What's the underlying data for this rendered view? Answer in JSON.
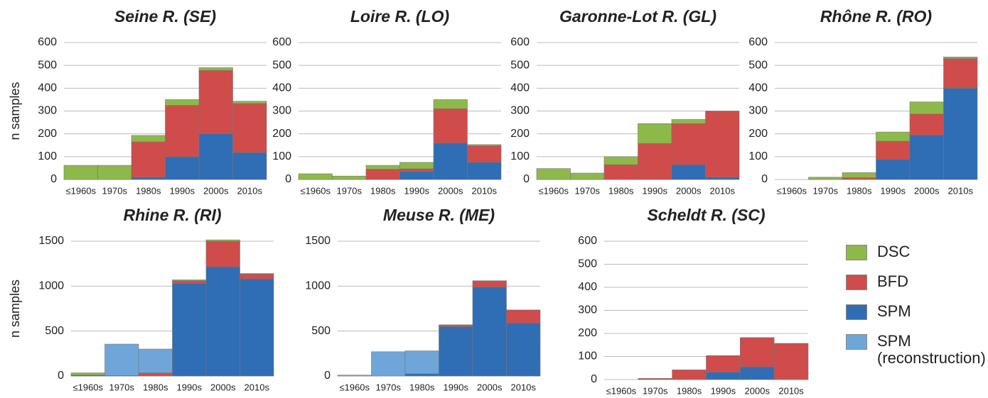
{
  "chart_data": [
    {
      "type": "bar",
      "stacked": true,
      "title": "Seine R. (SE)",
      "ylabel": "n samples",
      "grid": true,
      "categories": [
        "≤1960s",
        "1970s",
        "1980s",
        "1990s",
        "2000s",
        "2010s"
      ],
      "ylim": [
        0,
        600
      ],
      "yticks": [
        0,
        100,
        200,
        300,
        400,
        500,
        600
      ],
      "series": [
        {
          "name": "DSC",
          "color": "#8db94a",
          "values": [
            62,
            62,
            28,
            25,
            12,
            10
          ]
        },
        {
          "name": "BFD",
          "color": "#cf4c4a",
          "values": [
            0,
            0,
            155,
            225,
            278,
            215
          ]
        },
        {
          "name": "SPM",
          "color": "#2f6db5",
          "values": [
            0,
            0,
            10,
            100,
            200,
            118
          ]
        }
      ]
    },
    {
      "type": "bar",
      "stacked": true,
      "title": "Loire R. (LO)",
      "grid": true,
      "categories": [
        "≤1960s",
        "1970s",
        "1980s",
        "1990s",
        "2000s",
        "2010s"
      ],
      "ylim": [
        0,
        600
      ],
      "yticks": [
        0,
        100,
        200,
        300,
        400,
        500,
        600
      ],
      "series": [
        {
          "name": "DSC",
          "color": "#8db94a",
          "values": [
            25,
            15,
            17,
            28,
            40,
            5
          ]
        },
        {
          "name": "BFD",
          "color": "#cf4c4a",
          "values": [
            0,
            0,
            45,
            12,
            150,
            73
          ]
        },
        {
          "name": "SPM",
          "color": "#2f6db5",
          "values": [
            0,
            0,
            0,
            35,
            160,
            75
          ]
        }
      ]
    },
    {
      "type": "bar",
      "stacked": true,
      "title": "Garonne-Lot R. (GL)",
      "grid": true,
      "categories": [
        "≤1960s",
        "1970s",
        "1980s",
        "1990s",
        "2000s",
        "2010s"
      ],
      "ylim": [
        0,
        600
      ],
      "yticks": [
        0,
        100,
        200,
        300,
        400,
        500,
        600
      ],
      "series": [
        {
          "name": "DSC",
          "color": "#8db94a",
          "values": [
            48,
            28,
            35,
            87,
            18,
            0
          ]
        },
        {
          "name": "BFD",
          "color": "#cf4c4a",
          "values": [
            0,
            0,
            65,
            158,
            180,
            290
          ]
        },
        {
          "name": "SPM",
          "color": "#2f6db5",
          "values": [
            0,
            0,
            0,
            0,
            65,
            10
          ]
        }
      ]
    },
    {
      "type": "bar",
      "stacked": true,
      "title": "Rhône R. (RO)",
      "grid": true,
      "categories": [
        "≤1960s",
        "1970s",
        "1980s",
        "1990s",
        "2000s",
        "2010s"
      ],
      "ylim": [
        0,
        600
      ],
      "yticks": [
        0,
        100,
        200,
        300,
        400,
        500,
        600
      ],
      "series": [
        {
          "name": "DSC",
          "color": "#8db94a",
          "values": [
            0,
            10,
            22,
            40,
            53,
            7
          ]
        },
        {
          "name": "BFD",
          "color": "#cf4c4a",
          "values": [
            0,
            0,
            8,
            80,
            92,
            130
          ]
        },
        {
          "name": "SPM",
          "color": "#2f6db5",
          "values": [
            0,
            0,
            0,
            88,
            195,
            400
          ]
        }
      ]
    },
    {
      "type": "bar",
      "stacked": true,
      "title": "Rhine R. (RI)",
      "ylabel": "n samples",
      "grid": true,
      "categories": [
        "≤1960s",
        "1970s",
        "1980s",
        "1990s",
        "2000s",
        "2010s"
      ],
      "ylim": [
        0,
        1500
      ],
      "yticks": [
        0,
        500,
        1000,
        1500
      ],
      "series": [
        {
          "name": "DSC",
          "color": "#8db94a",
          "values": [
            25,
            5,
            5,
            10,
            15,
            5
          ]
        },
        {
          "name": "BFD",
          "color": "#cf4c4a",
          "values": [
            0,
            0,
            25,
            30,
            285,
            55
          ]
        },
        {
          "name": "SPM",
          "color": "#2f6db5",
          "values": [
            10,
            0,
            5,
            1030,
            1215,
            1080
          ]
        },
        {
          "name": "SPM (reconstruction)",
          "color": "#6fa6da",
          "values": [
            0,
            350,
            265,
            0,
            0,
            0
          ]
        }
      ]
    },
    {
      "type": "bar",
      "stacked": true,
      "title": "Meuse R. (ME)",
      "grid": true,
      "categories": [
        "≤1960s",
        "1970s",
        "1980s",
        "1990s",
        "2000s",
        "2010s"
      ],
      "ylim": [
        0,
        1500
      ],
      "yticks": [
        0,
        500,
        1000,
        1500
      ],
      "series": [
        {
          "name": "DSC",
          "color": "#8db94a",
          "values": [
            10,
            0,
            0,
            5,
            0,
            0
          ]
        },
        {
          "name": "BFD",
          "color": "#cf4c4a",
          "values": [
            0,
            0,
            0,
            15,
            70,
            145
          ]
        },
        {
          "name": "SPM",
          "color": "#2f6db5",
          "values": [
            0,
            0,
            25,
            550,
            990,
            590
          ]
        },
        {
          "name": "SPM (reconstruction)",
          "color": "#6fa6da",
          "values": [
            0,
            270,
            255,
            0,
            0,
            0
          ]
        }
      ]
    },
    {
      "type": "bar",
      "stacked": true,
      "title": "Scheldt R. (SC)",
      "grid": true,
      "legend": "right",
      "categories": [
        "≤1960s",
        "1970s",
        "1980s",
        "1990s",
        "2000s",
        "2010s"
      ],
      "ylim": [
        0,
        600
      ],
      "yticks": [
        0,
        100,
        200,
        300,
        400,
        500,
        600
      ],
      "series": [
        {
          "name": "DSC",
          "color": "#8db94a",
          "values": [
            0,
            0,
            0,
            0,
            0,
            0
          ]
        },
        {
          "name": "BFD",
          "color": "#cf4c4a",
          "values": [
            0,
            5,
            42,
            72,
            127,
            157
          ]
        },
        {
          "name": "SPM",
          "color": "#2f6db5",
          "values": [
            0,
            0,
            0,
            32,
            55,
            0
          ]
        },
        {
          "name": "SPM (reconstruction)",
          "color": "#6fa6da",
          "values": [
            0,
            0,
            0,
            0,
            0,
            0
          ]
        }
      ]
    }
  ]
}
